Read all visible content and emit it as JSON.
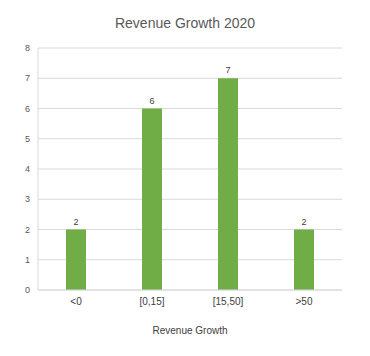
{
  "chart_data": {
    "type": "bar",
    "title": "Revenue Growth 2020",
    "x_label": "Revenue Growth",
    "categories": [
      "<0",
      "[0,15]",
      "[15,50]",
      ">50"
    ],
    "values": [
      2,
      6,
      7,
      2
    ],
    "color": "#70ad47",
    "ylim": [
      0,
      8
    ],
    "yticks": [
      0,
      1,
      2,
      3,
      4,
      5,
      6,
      7,
      8
    ],
    "grid": true,
    "data_labels": true
  }
}
